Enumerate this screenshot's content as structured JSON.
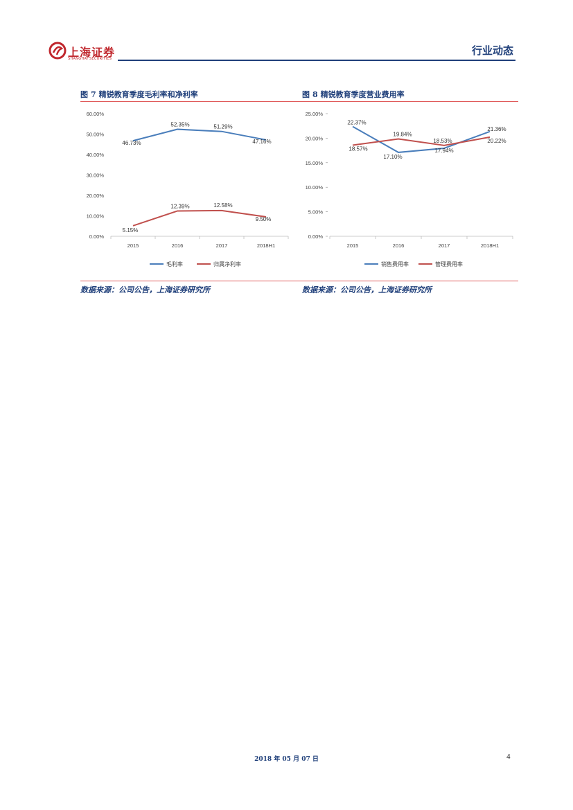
{
  "header": {
    "logo_text": "上海证券",
    "logo_sub": "SHANGHAI SECURITIES",
    "section_tag": "行业动态"
  },
  "figures": [
    {
      "prefix": "图",
      "number": "7",
      "title": "精锐教育季度毛利率和净利率",
      "source": "数据来源：公司公告，上海证券研究所"
    },
    {
      "prefix": "图",
      "number": "8",
      "title": "精锐教育季度营业费用率",
      "source": "数据来源：公司公告，上海证券研究所"
    }
  ],
  "chart_data": [
    {
      "type": "line",
      "categories": [
        "2015",
        "2016",
        "2017",
        "2018H1"
      ],
      "ylim": [
        0,
        60
      ],
      "yticks": [
        "0.00%",
        "10.00%",
        "20.00%",
        "30.00%",
        "40.00%",
        "50.00%",
        "60.00%"
      ],
      "series": [
        {
          "name": "毛利率",
          "color": "#4a7ebb",
          "values": [
            46.73,
            52.35,
            51.29,
            47.16
          ],
          "labels": [
            "46.73%",
            "52.35%",
            "51.29%",
            "47.16%"
          ]
        },
        {
          "name": "归属净利率",
          "color": "#c0504d",
          "values": [
            5.15,
            12.39,
            12.58,
            9.5
          ],
          "labels": [
            "5.15%",
            "12.39%",
            "12.58%",
            "9.50%"
          ]
        }
      ],
      "grid": false,
      "legend": "bottom"
    },
    {
      "type": "line",
      "categories": [
        "2015",
        "2016",
        "2017",
        "2018H1"
      ],
      "ylim": [
        0,
        25
      ],
      "yticks": [
        "0.00%",
        "5.00%",
        "10.00%",
        "15.00%",
        "20.00%",
        "25.00%"
      ],
      "series": [
        {
          "name": "销售费用率",
          "color": "#4a7ebb",
          "values": [
            22.37,
            17.1,
            17.94,
            21.36
          ],
          "labels": [
            "22.37%",
            "17.10%",
            "17.94%",
            "21.36%"
          ]
        },
        {
          "name": "管理费用率",
          "color": "#c0504d",
          "values": [
            18.57,
            19.84,
            18.53,
            20.22
          ],
          "labels": [
            "18.57%",
            "19.84%",
            "18.53%",
            "20.22%"
          ]
        }
      ],
      "grid": false,
      "legend": "bottom"
    }
  ],
  "footer": {
    "date": "2018 年 05 月 07 日",
    "page": "4"
  }
}
